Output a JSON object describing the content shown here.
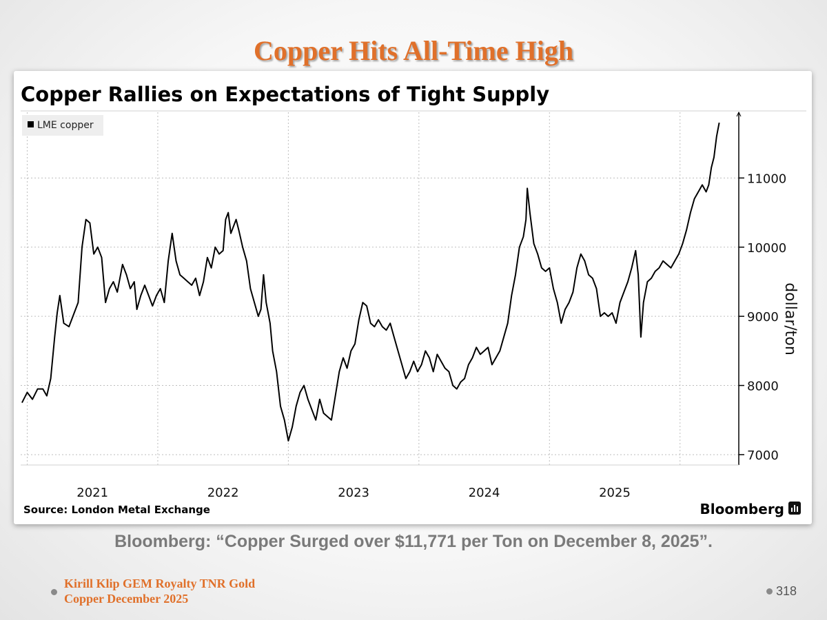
{
  "slide": {
    "title": "Copper Hits All-Time High",
    "caption": "Bloomberg: “Copper Surged over $11,771 per Ton on December 8, 2025”.",
    "footer_line1": "Kirill Klip GEM Royalty TNR Gold",
    "footer_line2": "Copper December 2025",
    "page_number": "318",
    "accent_color": "#e0702a"
  },
  "chart_data": {
    "type": "line",
    "title": "Copper Rallies on Expectations of Tight Supply",
    "source": "Source: London Metal Exchange",
    "brand": "Bloomberg",
    "legend": "LME copper",
    "legend_position": "top-left",
    "ylabel": "dollar/ton",
    "ylim": [
      6850,
      11950
    ],
    "yticks": [
      "7000",
      "8000",
      "9000",
      "10000",
      "11000"
    ],
    "ytick_values": [
      7000,
      8000,
      9000,
      10000,
      11000
    ],
    "xlim": [
      2020.45,
      2025.95
    ],
    "xticks": [
      "2021",
      "2022",
      "2023",
      "2024",
      "2025"
    ],
    "xtick_positions": [
      2021.0,
      2022.0,
      2023.0,
      2024.0,
      2025.0
    ],
    "gridlines": [
      2020.5,
      2021.5,
      2022.5,
      2023.5,
      2024.5,
      2025.5
    ],
    "line_color": "#000000",
    "series": [
      {
        "name": "LME copper",
        "points": [
          [
            2020.46,
            7750
          ],
          [
            2020.5,
            7900
          ],
          [
            2020.54,
            7800
          ],
          [
            2020.58,
            7950
          ],
          [
            2020.62,
            7950
          ],
          [
            2020.65,
            7850
          ],
          [
            2020.68,
            8100
          ],
          [
            2020.71,
            8700
          ],
          [
            2020.73,
            9050
          ],
          [
            2020.75,
            9300
          ],
          [
            2020.78,
            8900
          ],
          [
            2020.82,
            8850
          ],
          [
            2020.86,
            9050
          ],
          [
            2020.89,
            9200
          ],
          [
            2020.92,
            10000
          ],
          [
            2020.95,
            10400
          ],
          [
            2020.98,
            10350
          ],
          [
            2021.01,
            9900
          ],
          [
            2021.04,
            10000
          ],
          [
            2021.07,
            9850
          ],
          [
            2021.1,
            9200
          ],
          [
            2021.13,
            9400
          ],
          [
            2021.16,
            9500
          ],
          [
            2021.19,
            9350
          ],
          [
            2021.23,
            9750
          ],
          [
            2021.26,
            9600
          ],
          [
            2021.29,
            9400
          ],
          [
            2021.32,
            9500
          ],
          [
            2021.34,
            9100
          ],
          [
            2021.37,
            9300
          ],
          [
            2021.4,
            9450
          ],
          [
            2021.43,
            9300
          ],
          [
            2021.46,
            9150
          ],
          [
            2021.49,
            9300
          ],
          [
            2021.52,
            9400
          ],
          [
            2021.55,
            9200
          ],
          [
            2021.58,
            9800
          ],
          [
            2021.61,
            10200
          ],
          [
            2021.64,
            9800
          ],
          [
            2021.67,
            9600
          ],
          [
            2021.7,
            9550
          ],
          [
            2021.73,
            9500
          ],
          [
            2021.76,
            9450
          ],
          [
            2021.79,
            9550
          ],
          [
            2021.82,
            9300
          ],
          [
            2021.85,
            9500
          ],
          [
            2021.88,
            9850
          ],
          [
            2021.91,
            9700
          ],
          [
            2021.94,
            10000
          ],
          [
            2021.97,
            9900
          ],
          [
            2022.0,
            9950
          ],
          [
            2022.02,
            10400
          ],
          [
            2022.04,
            10500
          ],
          [
            2022.06,
            10200
          ],
          [
            2022.08,
            10300
          ],
          [
            2022.1,
            10400
          ],
          [
            2022.12,
            10250
          ],
          [
            2022.15,
            10000
          ],
          [
            2022.18,
            9800
          ],
          [
            2022.21,
            9400
          ],
          [
            2022.24,
            9200
          ],
          [
            2022.27,
            9000
          ],
          [
            2022.29,
            9100
          ],
          [
            2022.31,
            9600
          ],
          [
            2022.33,
            9200
          ],
          [
            2022.36,
            8900
          ],
          [
            2022.38,
            8500
          ],
          [
            2022.41,
            8200
          ],
          [
            2022.44,
            7700
          ],
          [
            2022.47,
            7500
          ],
          [
            2022.5,
            7200
          ],
          [
            2022.53,
            7400
          ],
          [
            2022.56,
            7700
          ],
          [
            2022.59,
            7900
          ],
          [
            2022.62,
            8000
          ],
          [
            2022.65,
            7800
          ],
          [
            2022.68,
            7650
          ],
          [
            2022.71,
            7500
          ],
          [
            2022.74,
            7800
          ],
          [
            2022.77,
            7600
          ],
          [
            2022.8,
            7550
          ],
          [
            2022.83,
            7500
          ],
          [
            2022.86,
            7850
          ],
          [
            2022.89,
            8200
          ],
          [
            2022.92,
            8400
          ],
          [
            2022.95,
            8250
          ],
          [
            2022.98,
            8500
          ],
          [
            2023.01,
            8600
          ],
          [
            2023.04,
            8950
          ],
          [
            2023.07,
            9200
          ],
          [
            2023.1,
            9150
          ],
          [
            2023.13,
            8900
          ],
          [
            2023.16,
            8850
          ],
          [
            2023.19,
            8950
          ],
          [
            2023.22,
            8850
          ],
          [
            2023.25,
            8800
          ],
          [
            2023.28,
            8900
          ],
          [
            2023.31,
            8700
          ],
          [
            2023.34,
            8500
          ],
          [
            2023.37,
            8300
          ],
          [
            2023.4,
            8100
          ],
          [
            2023.43,
            8200
          ],
          [
            2023.46,
            8350
          ],
          [
            2023.49,
            8200
          ],
          [
            2023.52,
            8300
          ],
          [
            2023.55,
            8500
          ],
          [
            2023.58,
            8400
          ],
          [
            2023.61,
            8200
          ],
          [
            2023.64,
            8450
          ],
          [
            2023.67,
            8350
          ],
          [
            2023.7,
            8250
          ],
          [
            2023.73,
            8200
          ],
          [
            2023.76,
            8000
          ],
          [
            2023.79,
            7950
          ],
          [
            2023.82,
            8050
          ],
          [
            2023.85,
            8100
          ],
          [
            2023.88,
            8300
          ],
          [
            2023.91,
            8400
          ],
          [
            2023.94,
            8550
          ],
          [
            2023.97,
            8450
          ],
          [
            2024.0,
            8500
          ],
          [
            2024.03,
            8550
          ],
          [
            2024.06,
            8300
          ],
          [
            2024.09,
            8400
          ],
          [
            2024.12,
            8500
          ],
          [
            2024.15,
            8700
          ],
          [
            2024.18,
            8900
          ],
          [
            2024.21,
            9300
          ],
          [
            2024.24,
            9600
          ],
          [
            2024.27,
            10000
          ],
          [
            2024.3,
            10150
          ],
          [
            2024.32,
            10400
          ],
          [
            2024.33,
            10850
          ],
          [
            2024.35,
            10500
          ],
          [
            2024.38,
            10050
          ],
          [
            2024.41,
            9900
          ],
          [
            2024.44,
            9700
          ],
          [
            2024.47,
            9650
          ],
          [
            2024.5,
            9700
          ],
          [
            2024.53,
            9400
          ],
          [
            2024.56,
            9200
          ],
          [
            2024.59,
            8900
          ],
          [
            2024.62,
            9100
          ],
          [
            2024.65,
            9200
          ],
          [
            2024.68,
            9350
          ],
          [
            2024.71,
            9700
          ],
          [
            2024.74,
            9900
          ],
          [
            2024.77,
            9800
          ],
          [
            2024.8,
            9600
          ],
          [
            2024.83,
            9550
          ],
          [
            2024.86,
            9400
          ],
          [
            2024.89,
            9000
          ],
          [
            2024.92,
            9050
          ],
          [
            2024.95,
            9000
          ],
          [
            2024.98,
            9050
          ],
          [
            2025.01,
            8900
          ],
          [
            2025.04,
            9200
          ],
          [
            2025.07,
            9350
          ],
          [
            2025.1,
            9500
          ],
          [
            2025.13,
            9700
          ],
          [
            2025.16,
            9950
          ],
          [
            2025.18,
            9600
          ],
          [
            2025.2,
            8700
          ],
          [
            2025.22,
            9200
          ],
          [
            2025.25,
            9500
          ],
          [
            2025.28,
            9550
          ],
          [
            2025.31,
            9650
          ],
          [
            2025.34,
            9700
          ],
          [
            2025.37,
            9800
          ],
          [
            2025.4,
            9750
          ],
          [
            2025.43,
            9700
          ],
          [
            2025.46,
            9800
          ],
          [
            2025.49,
            9900
          ],
          [
            2025.52,
            10050
          ],
          [
            2025.55,
            10250
          ],
          [
            2025.58,
            10500
          ],
          [
            2025.61,
            10700
          ],
          [
            2025.64,
            10800
          ],
          [
            2025.67,
            10900
          ],
          [
            2025.7,
            10800
          ],
          [
            2025.72,
            10900
          ],
          [
            2025.74,
            11150
          ],
          [
            2025.76,
            11300
          ],
          [
            2025.78,
            11600
          ],
          [
            2025.8,
            11800
          ]
        ]
      }
    ]
  }
}
